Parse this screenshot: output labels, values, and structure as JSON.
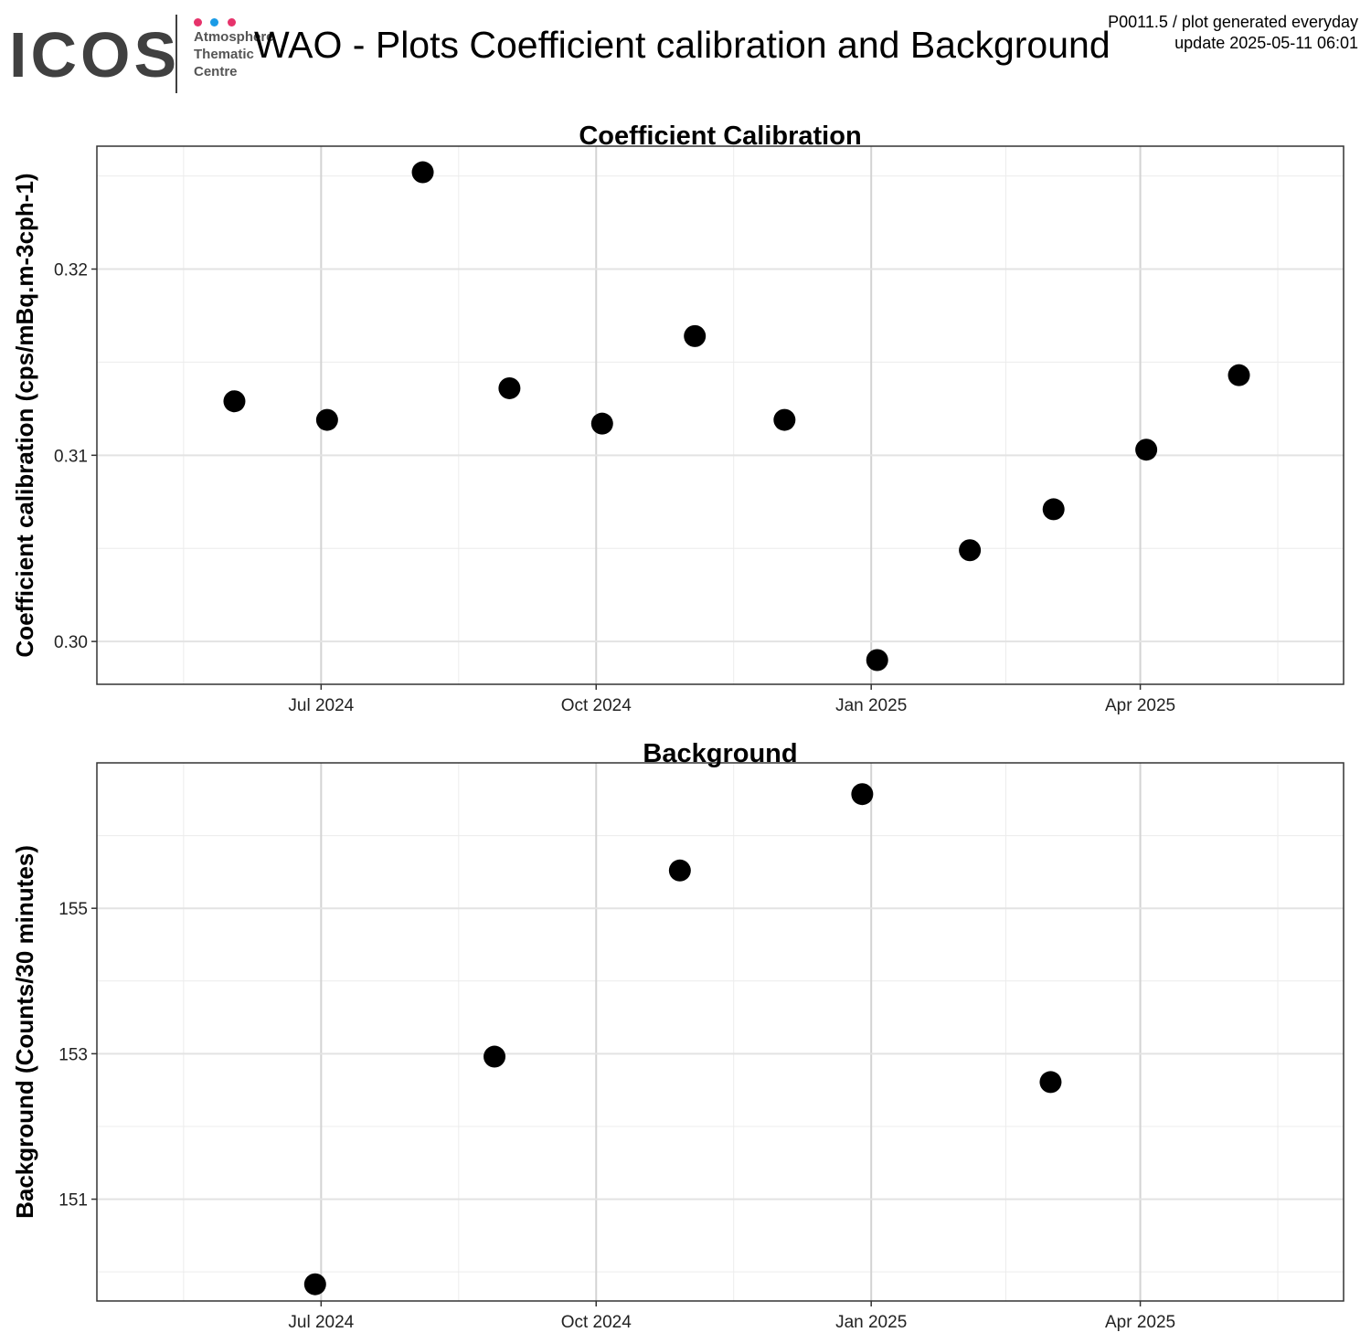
{
  "header": {
    "logo_word": "ICOS",
    "logo_lines": [
      "Atmosphere",
      "Thematic",
      "Centre"
    ],
    "logo_dot_colors": [
      "#e6336b",
      "#1a9be6",
      "#e6336b"
    ],
    "title": "WAO - Plots Coefficient calibration and Background",
    "meta_line1": "P0011.5 / plot generated everyday",
    "meta_line2": "update  2025-05-11 06:01"
  },
  "chart_data": [
    {
      "type": "scatter",
      "title": "Coefficient Calibration",
      "xlabel": "",
      "ylabel": "Coefficient calibration (cps/mBq.m-3cph-1)",
      "xlim": [
        "2024-04-17",
        "2025-06-08"
      ],
      "ylim": [
        0.2977,
        0.3266
      ],
      "y_ticks": [
        0.3,
        0.31,
        0.32
      ],
      "y_tick_labels": [
        "0.30",
        "0.31",
        "0.32"
      ],
      "x_ticks": [
        "2024-07-01",
        "2024-10-01",
        "2025-01-01",
        "2025-04-01"
      ],
      "x_tick_labels": [
        "Jul 2024",
        "Oct 2024",
        "Jan 2025",
        "Apr 2025"
      ],
      "grid": true,
      "color": "#000000",
      "points": [
        {
          "x": "2024-06-02",
          "y": 0.3129
        },
        {
          "x": "2024-07-03",
          "y": 0.3119
        },
        {
          "x": "2024-08-04",
          "y": 0.3252
        },
        {
          "x": "2024-09-02",
          "y": 0.3136
        },
        {
          "x": "2024-10-03",
          "y": 0.3117
        },
        {
          "x": "2024-11-03",
          "y": 0.3164
        },
        {
          "x": "2024-12-03",
          "y": 0.3119
        },
        {
          "x": "2025-01-03",
          "y": 0.299
        },
        {
          "x": "2025-02-03",
          "y": 0.3049
        },
        {
          "x": "2025-03-03",
          "y": 0.3071
        },
        {
          "x": "2025-04-03",
          "y": 0.3103
        },
        {
          "x": "2025-05-04",
          "y": 0.3143
        }
      ]
    },
    {
      "type": "scatter",
      "title": "Background",
      "xlabel": "",
      "ylabel": "Background (Counts/30 minutes)",
      "xlim": [
        "2024-04-17",
        "2025-06-08"
      ],
      "ylim": [
        149.6,
        157.0
      ],
      "y_ticks": [
        151,
        153,
        155
      ],
      "y_tick_labels": [
        "151",
        "153",
        "155"
      ],
      "x_ticks": [
        "2024-07-01",
        "2024-10-01",
        "2025-01-01",
        "2025-04-01"
      ],
      "x_tick_labels": [
        "Jul 2024",
        "Oct 2024",
        "Jan 2025",
        "Apr 2025"
      ],
      "grid": true,
      "color": "#000000",
      "points": [
        {
          "x": "2024-06-29",
          "y": 149.83
        },
        {
          "x": "2024-08-28",
          "y": 152.96
        },
        {
          "x": "2024-10-29",
          "y": 155.52
        },
        {
          "x": "2024-12-29",
          "y": 156.57
        },
        {
          "x": "2025-03-02",
          "y": 152.61
        }
      ]
    }
  ]
}
